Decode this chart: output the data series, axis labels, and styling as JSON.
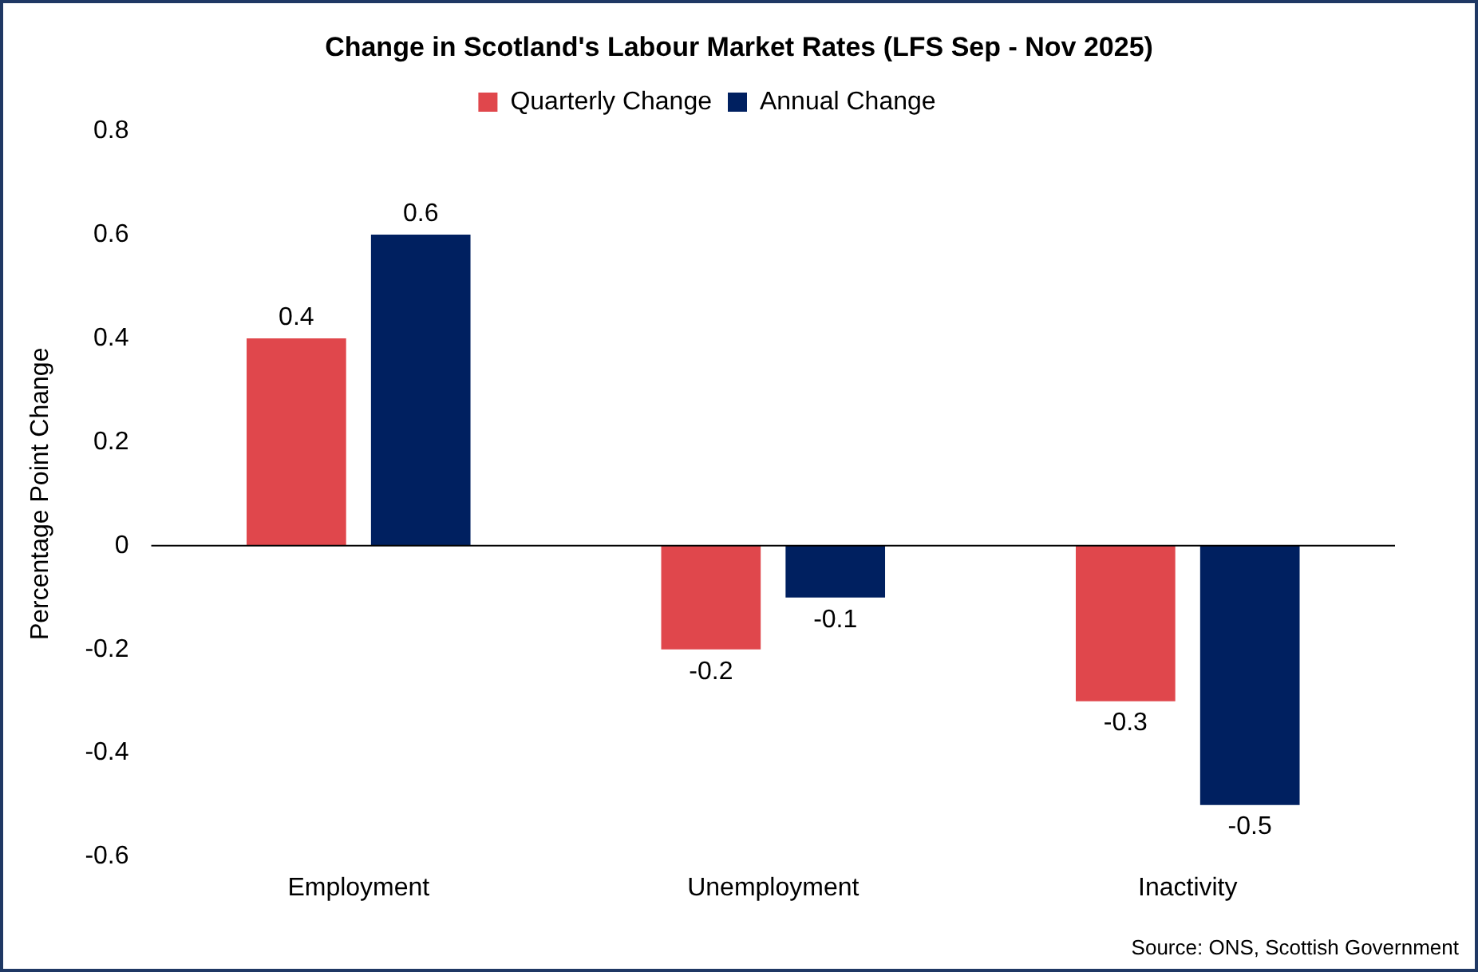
{
  "chart_data": {
    "type": "bar",
    "title": "Change in Scotland's Labour Market Rates (LFS Sep - Nov 2025)",
    "ylabel": "Percentage Point Change",
    "categories": [
      "Employment",
      "Unemployment",
      "Inactivity"
    ],
    "series": [
      {
        "name": "Quarterly Change",
        "color": "#e0474c",
        "values": [
          0.4,
          -0.2,
          -0.3
        ]
      },
      {
        "name": "Annual Change",
        "color": "#002060",
        "values": [
          0.6,
          -0.1,
          -0.5
        ]
      }
    ],
    "ylim": [
      -0.6,
      0.8
    ],
    "yticks": [
      -0.6,
      -0.4,
      -0.2,
      0,
      0.2,
      0.4,
      0.6,
      0.8
    ],
    "grid": false,
    "ref_lines": [
      {
        "axis": "y",
        "value": 0,
        "color": "#000000"
      }
    ],
    "legend": "top",
    "data_labels": true,
    "annotations": [
      "Source: ONS, Scottish Government"
    ]
  }
}
